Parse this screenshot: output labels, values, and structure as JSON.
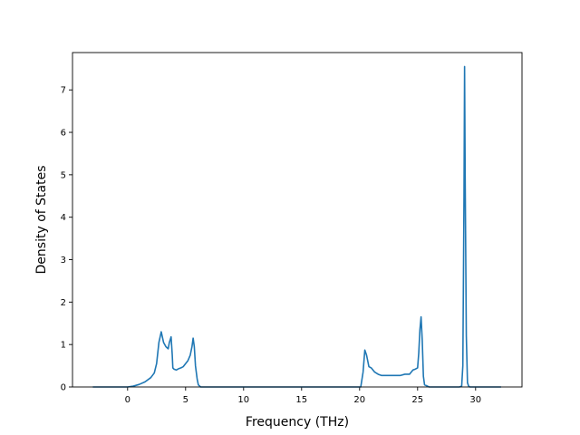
{
  "chart_data": {
    "type": "line",
    "title": "",
    "xlabel": "Frequency (THz)",
    "ylabel": "Density of States",
    "xlim": [
      -4.75,
      34.0
    ],
    "ylim": [
      0,
      7.88
    ],
    "xticks": [
      0,
      5,
      10,
      15,
      20,
      25,
      30
    ],
    "yticks": [
      0,
      1,
      2,
      3,
      4,
      5,
      6,
      7
    ],
    "grid": false,
    "line_color": "#1f77b4",
    "series": [
      {
        "x": [
          -3.0,
          0.0,
          0.5,
          1.0,
          1.5,
          2.0,
          2.3,
          2.5,
          2.7,
          2.9,
          3.1,
          3.3,
          3.5,
          3.6,
          3.75,
          3.85,
          3.9,
          4.0,
          4.2,
          4.4,
          4.6,
          4.8,
          5.0,
          5.2,
          5.4,
          5.55,
          5.65,
          5.75,
          5.85,
          6.0,
          6.1,
          6.3,
          7.0,
          15.0,
          19.8,
          20.1,
          20.3,
          20.45,
          20.6,
          20.8,
          21.0,
          21.3,
          21.6,
          21.9,
          22.5,
          23.0,
          23.5,
          23.9,
          24.3,
          24.6,
          24.8,
          25.0,
          25.1,
          25.2,
          25.3,
          25.4,
          25.5,
          25.6,
          26.0,
          28.0,
          28.6,
          28.8,
          28.9,
          29.0,
          29.05,
          29.1,
          29.2,
          29.3,
          29.4,
          29.5,
          30.0,
          32.2
        ],
        "y": [
          0.0,
          0.0,
          0.02,
          0.06,
          0.12,
          0.22,
          0.33,
          0.55,
          1.05,
          1.3,
          1.05,
          0.95,
          0.9,
          1.05,
          1.18,
          0.75,
          0.45,
          0.42,
          0.4,
          0.43,
          0.45,
          0.48,
          0.55,
          0.62,
          0.75,
          0.95,
          1.15,
          0.95,
          0.5,
          0.18,
          0.05,
          0.0,
          0.0,
          0.0,
          0.0,
          0.0,
          0.35,
          0.87,
          0.75,
          0.48,
          0.45,
          0.35,
          0.3,
          0.27,
          0.27,
          0.27,
          0.27,
          0.3,
          0.3,
          0.4,
          0.42,
          0.45,
          0.8,
          1.35,
          1.65,
          1.1,
          0.25,
          0.05,
          0.0,
          0.0,
          0.0,
          0.02,
          0.5,
          4.5,
          7.55,
          5.0,
          1.2,
          0.1,
          0.02,
          0.0,
          0.0,
          0.0
        ]
      }
    ]
  }
}
